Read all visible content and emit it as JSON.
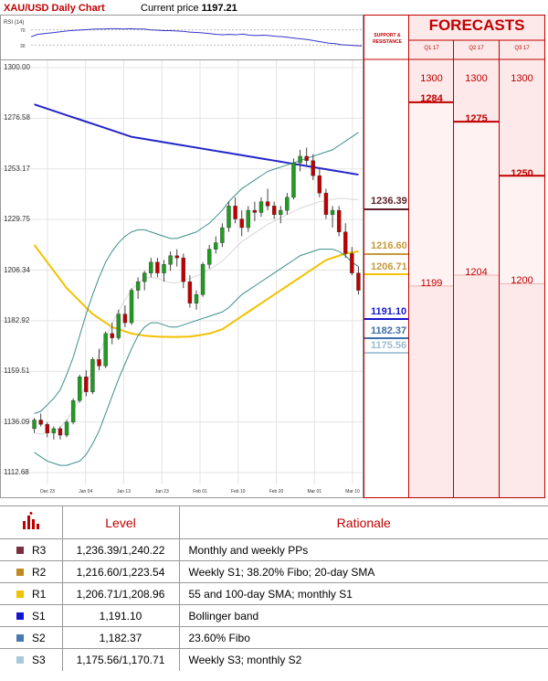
{
  "header": {
    "title": "XAU/USD Daily Chart",
    "price_label": "Current price",
    "price_value": "1197.21"
  },
  "sr_head": [
    "SUPPORT &",
    "RESISTANCE"
  ],
  "forecasts": {
    "title": "FORECASTS",
    "quarters": [
      "Q1 17",
      "Q2 17",
      "Q3 17"
    ],
    "top_values": [
      "1300",
      "1300",
      "1300"
    ],
    "high_values": [
      "1284",
      "1275",
      "1250"
    ],
    "low_values": [
      "1199",
      "1204",
      "1200"
    ]
  },
  "colors": {
    "accent": "#c00000",
    "r3": "#5b1f2a",
    "r2": "#c59a3c",
    "r1": "#f2c200",
    "s1": "#1515d0",
    "s2": "#3c6ea8",
    "s3": "#aac8dc",
    "sma_slow": "#2525c8",
    "sma_fast": "#f2c200",
    "bollinger": "#3b8f8a",
    "up": "#1f9d1f",
    "down": "#c00000"
  },
  "levels_on_chart": [
    {
      "id": "r3",
      "value": "1236.39"
    },
    {
      "id": "r2",
      "value": "1216.60"
    },
    {
      "id": "r1",
      "value": "1206.71"
    },
    {
      "id": "s1",
      "value": "1191.10"
    },
    {
      "id": "s2",
      "value": "1182.37"
    },
    {
      "id": "s3",
      "value": "1175.56"
    }
  ],
  "chart_data": {
    "type": "candlestick",
    "title": "XAU/USD Daily Chart",
    "y_ticks": [
      "1300.00",
      "1276.58",
      "1253.17",
      "1229.75",
      "1206.34",
      "1182.92",
      "1159.51",
      "1136.09",
      "1112.68"
    ],
    "ylim": [
      1112.68,
      1300.0
    ],
    "x_ticks": [
      "Dec 23",
      "Jan 04",
      "Jan 13",
      "Jan 23",
      "Feb 01",
      "Feb 10",
      "Feb 20",
      "Mar 01",
      "Mar 10"
    ],
    "rsi": {
      "label": "RSI (14)",
      "ticks": [
        "70",
        "30"
      ],
      "values": [
        52,
        58,
        60,
        62,
        64,
        66,
        68,
        69,
        70,
        71,
        72,
        72,
        73,
        73,
        72,
        73,
        72,
        72,
        70,
        69,
        68,
        68,
        67,
        66,
        64,
        63,
        62,
        60,
        58,
        57,
        58,
        57,
        59,
        56,
        55,
        56,
        55,
        53,
        52,
        50,
        48,
        46,
        44,
        41,
        38,
        35,
        34,
        31,
        30,
        29,
        28
      ]
    },
    "candles": [
      [
        1133,
        1138,
        1131,
        1137
      ],
      [
        1137,
        1140,
        1134,
        1135
      ],
      [
        1135,
        1136,
        1129,
        1131
      ],
      [
        1131,
        1134,
        1128,
        1133
      ],
      [
        1133,
        1134,
        1128,
        1130
      ],
      [
        1130,
        1137,
        1129,
        1136
      ],
      [
        1136,
        1147,
        1135,
        1146
      ],
      [
        1146,
        1158,
        1145,
        1157
      ],
      [
        1157,
        1160,
        1148,
        1150
      ],
      [
        1150,
        1166,
        1149,
        1165
      ],
      [
        1165,
        1170,
        1160,
        1162
      ],
      [
        1162,
        1178,
        1161,
        1177
      ],
      [
        1177,
        1182,
        1172,
        1175
      ],
      [
        1175,
        1188,
        1174,
        1186
      ],
      [
        1186,
        1190,
        1180,
        1182
      ],
      [
        1182,
        1198,
        1181,
        1197
      ],
      [
        1197,
        1203,
        1193,
        1201
      ],
      [
        1201,
        1206,
        1197,
        1205
      ],
      [
        1205,
        1212,
        1203,
        1210
      ],
      [
        1210,
        1212,
        1203,
        1205
      ],
      [
        1205,
        1211,
        1201,
        1209
      ],
      [
        1209,
        1215,
        1206,
        1213
      ],
      [
        1213,
        1216,
        1208,
        1212
      ],
      [
        1212,
        1214,
        1198,
        1201
      ],
      [
        1201,
        1204,
        1189,
        1191
      ],
      [
        1191,
        1197,
        1188,
        1195
      ],
      [
        1195,
        1210,
        1194,
        1209
      ],
      [
        1209,
        1218,
        1207,
        1216
      ],
      [
        1216,
        1222,
        1214,
        1219
      ],
      [
        1219,
        1228,
        1217,
        1226
      ],
      [
        1226,
        1238,
        1224,
        1236
      ],
      [
        1236,
        1240,
        1228,
        1230
      ],
      [
        1230,
        1234,
        1222,
        1226
      ],
      [
        1226,
        1236,
        1224,
        1234
      ],
      [
        1234,
        1238,
        1229,
        1233
      ],
      [
        1233,
        1240,
        1231,
        1238
      ],
      [
        1238,
        1244,
        1234,
        1236
      ],
      [
        1236,
        1238,
        1230,
        1232
      ],
      [
        1232,
        1236,
        1228,
        1234
      ],
      [
        1234,
        1242,
        1232,
        1240
      ],
      [
        1240,
        1258,
        1239,
        1256
      ],
      [
        1256,
        1262,
        1252,
        1259
      ],
      [
        1259,
        1263,
        1255,
        1257
      ],
      [
        1257,
        1260,
        1248,
        1250
      ],
      [
        1250,
        1254,
        1240,
        1242
      ],
      [
        1242,
        1244,
        1230,
        1232
      ],
      [
        1232,
        1236,
        1226,
        1234
      ],
      [
        1234,
        1236,
        1222,
        1224
      ],
      [
        1224,
        1228,
        1212,
        1214
      ],
      [
        1214,
        1217,
        1204,
        1205
      ],
      [
        1205,
        1208,
        1195,
        1197
      ]
    ],
    "series": [
      {
        "values": [
          1283,
          1282,
          1281,
          1280,
          1279,
          1278,
          1277,
          1276,
          1275,
          1274,
          1273,
          1272,
          1271,
          1270,
          1269,
          1268,
          1267.5,
          1267,
          1266.5,
          1266,
          1265.5,
          1265,
          1264.5,
          1264,
          1263.5,
          1263,
          1262.5,
          1262,
          1261.5,
          1261,
          1260.5,
          1260,
          1259.5,
          1259,
          1258.5,
          1258,
          1257.5,
          1257,
          1256.5,
          1256,
          1255.5,
          1255,
          1254.5,
          1254,
          1253.5,
          1253,
          1252.5,
          1252,
          1251.5,
          1251,
          1250.5
        ]
      },
      {
        "values": [
          1218,
          1214,
          1210,
          1206,
          1202,
          1198,
          1195,
          1192,
          1189,
          1186,
          1184,
          1182,
          1180,
          1179,
          1178,
          1177,
          1176.5,
          1176,
          1175.8,
          1175.6,
          1175.5,
          1175.4,
          1175.4,
          1175.5,
          1175.6,
          1176,
          1176.5,
          1177,
          1178,
          1179,
          1181,
          1183,
          1185,
          1187,
          1189,
          1191,
          1193,
          1195,
          1197,
          1199,
          1201,
          1203,
          1205,
          1207,
          1209,
          1211,
          1212,
          1213,
          1214,
          1214.5,
          1215
        ]
      },
      {
        "values": [
          1122,
          1120,
          1118,
          1117,
          1116,
          1116,
          1117,
          1118,
          1121,
          1126,
          1132,
          1140,
          1148,
          1156,
          1163,
          1170,
          1176,
          1180,
          1182,
          1182,
          1181,
          1180,
          1180,
          1181,
          1182,
          1183,
          1184,
          1185,
          1186,
          1187,
          1189,
          1192,
          1195,
          1197,
          1199,
          1201,
          1203,
          1205,
          1207,
          1209,
          1211,
          1213,
          1214,
          1215,
          1216,
          1216,
          1216,
          1215,
          1213,
          1210,
          1208
        ]
      },
      {
        "values": [
          1140,
          1141,
          1144,
          1147,
          1151,
          1158,
          1166,
          1176,
          1186,
          1195,
          1203,
          1210,
          1215,
          1219,
          1222,
          1224,
          1225,
          1225,
          1224,
          1223,
          1222,
          1221,
          1221,
          1222,
          1223,
          1224,
          1226,
          1228,
          1231,
          1234,
          1238,
          1241,
          1244,
          1246,
          1248,
          1250,
          1252,
          1253,
          1254,
          1255,
          1256,
          1257,
          1258,
          1259,
          1260,
          1261,
          1262,
          1264,
          1266,
          1268,
          1270
        ]
      }
    ]
  },
  "table": {
    "headers": {
      "level": "Level",
      "rationale": "Rationale"
    },
    "rows": [
      {
        "name": "R3",
        "level": "1,236.39/1,240.22",
        "rationale": "Monthly and weekly PPs",
        "color": "#7a3040"
      },
      {
        "name": "R2",
        "level": "1,216.60/1,223.54",
        "rationale": "Weekly S1; 38.20% Fibo; 20-day SMA",
        "color": "#c08a20"
      },
      {
        "name": "R1",
        "level": "1,206.71/1,208.96",
        "rationale": "55 and 100-day SMA; monthly S1",
        "color": "#f2c200"
      },
      {
        "name": "S1",
        "level": "1,191.10",
        "rationale": "Bollinger band",
        "color": "#1515d0"
      },
      {
        "name": "S2",
        "level": "1,182.37",
        "rationale": "23.60% Fibo",
        "color": "#4a78b0"
      },
      {
        "name": "S3",
        "level": "1,175.56/1,170.71",
        "rationale": "Weekly S3; monthly S2",
        "color": "#aac8dc"
      }
    ]
  }
}
